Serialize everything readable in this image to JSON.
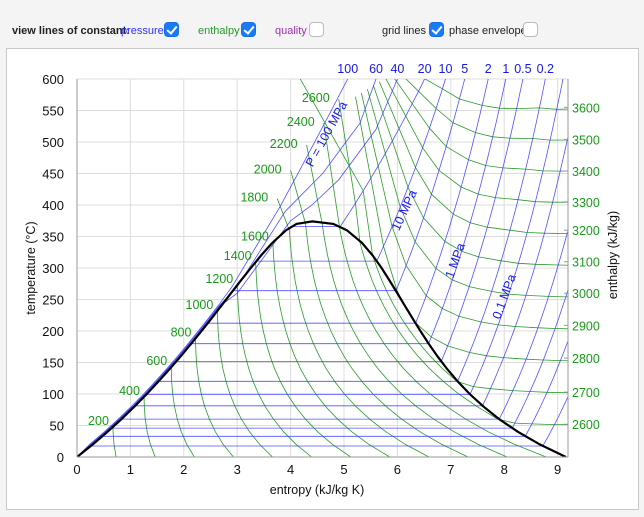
{
  "controls": {
    "lead": "view lines of constant:",
    "pressure": {
      "label": "pressure",
      "checked": true
    },
    "enthalpy": {
      "label": "enthalpy",
      "checked": true
    },
    "quality": {
      "label": "quality",
      "checked": false
    },
    "grid_lines": {
      "label": "grid lines",
      "checked": true
    },
    "phase_envelope": {
      "label": "phase envelope",
      "checked": false
    }
  },
  "colors": {
    "pressure": "#3333ff",
    "enthalpy": "#2a9a2a",
    "quality": "#9933aa",
    "dome": "#000000",
    "grid": "#dddddd"
  },
  "chart_data": {
    "type": "line",
    "title": "",
    "xlabel": "entropy (kJ/kg K)",
    "ylabel": "temperature (°C)",
    "y2label": "enthalpy (kJ/kg)",
    "xlim": [
      0,
      9.19
    ],
    "ylim": [
      0,
      600
    ],
    "grid": true,
    "x_ticks": [
      "0",
      "1",
      "2",
      "3",
      "4",
      "5",
      "6",
      "7",
      "8",
      "9"
    ],
    "y_ticks": [
      "0",
      "50",
      "100",
      "150",
      "200",
      "250",
      "300",
      "350",
      "400",
      "450",
      "500",
      "550",
      "600"
    ],
    "right_ticks": [
      {
        "label": "2600",
        "T": 52
      },
      {
        "label": "2700",
        "T": 103
      },
      {
        "label": "2800",
        "T": 157
      },
      {
        "label": "2900",
        "T": 209
      },
      {
        "label": "3000",
        "T": 260
      },
      {
        "label": "3100",
        "T": 310
      },
      {
        "label": "3200",
        "T": 360
      },
      {
        "label": "3300",
        "T": 405
      },
      {
        "label": "3400",
        "T": 454
      },
      {
        "label": "3500",
        "T": 504
      },
      {
        "label": "3600",
        "T": 555
      }
    ],
    "saturation": {
      "columns": [
        "T",
        "hf",
        "hg",
        "sf",
        "sg"
      ],
      "rows": [
        [
          0.01,
          0,
          2501,
          0,
          9.156
        ],
        [
          20,
          83.9,
          2538,
          0.296,
          8.666
        ],
        [
          40,
          167.5,
          2574,
          0.572,
          8.256
        ],
        [
          60,
          251.1,
          2609,
          0.831,
          7.909
        ],
        [
          80,
          334.9,
          2643,
          1.075,
          7.612
        ],
        [
          100,
          419.1,
          2676,
          1.307,
          7.354
        ],
        [
          120,
          503.7,
          2706,
          1.527,
          7.129
        ],
        [
          140,
          589.2,
          2734,
          1.739,
          6.929
        ],
        [
          160,
          675.5,
          2758,
          1.943,
          6.75
        ],
        [
          180,
          763.2,
          2778,
          2.14,
          6.585
        ],
        [
          200,
          852.4,
          2793,
          2.331,
          6.431
        ],
        [
          220,
          943.6,
          2802,
          2.518,
          6.284
        ],
        [
          240,
          1037.6,
          2804,
          2.702,
          6.141
        ],
        [
          260,
          1135,
          2797,
          2.884,
          5.999
        ],
        [
          280,
          1236.7,
          2780,
          3.067,
          5.854
        ],
        [
          300,
          1345,
          2749,
          3.254,
          5.704
        ],
        [
          320,
          1462.6,
          2700,
          3.448,
          5.536
        ],
        [
          340,
          1594.5,
          2622,
          3.659,
          5.336
        ],
        [
          360,
          1761.5,
          2481,
          3.915,
          5.053
        ],
        [
          370,
          1890,
          2334,
          4.11,
          4.8
        ],
        [
          373.95,
          2084,
          2084,
          4.407,
          4.407
        ]
      ]
    },
    "isobars": [
      {
        "p": 0.002,
        "Tsat": 17.5,
        "sf": 0.261,
        "sg": 8.723,
        "hg": 2533,
        "s600": 10.9
      },
      {
        "p": 0.005,
        "Tsat": 32.9,
        "sf": 0.476,
        "sg": 8.394,
        "hg": 2561,
        "s600": 10.48
      },
      {
        "p": 0.01,
        "Tsat": 45.8,
        "sf": 0.649,
        "sg": 8.149,
        "hg": 2584,
        "s600": 10.16
      },
      {
        "p": 0.02,
        "Tsat": 60.1,
        "sf": 0.832,
        "sg": 7.907,
        "hg": 2609,
        "s600": 9.84
      },
      {
        "p": 0.05,
        "Tsat": 81.3,
        "sf": 1.091,
        "sg": 7.593,
        "hg": 2645,
        "s600": 9.42
      },
      {
        "p": 0.1,
        "Tsat": 99.6,
        "sf": 1.303,
        "sg": 7.359,
        "hg": 2675,
        "s600": 9.1,
        "top_label": "",
        "label": "0.1 MPa"
      },
      {
        "p": 0.2,
        "Tsat": 120.2,
        "sf": 1.53,
        "sg": 7.127,
        "hg": 2706,
        "s600": 8.77,
        "top_label": "0.2"
      },
      {
        "p": 0.5,
        "Tsat": 151.8,
        "sf": 1.861,
        "sg": 6.821,
        "hg": 2748,
        "s600": 8.35,
        "top_label": "0.5"
      },
      {
        "p": 1,
        "Tsat": 179.9,
        "sf": 2.138,
        "sg": 6.585,
        "hg": 2777,
        "s600": 8.03,
        "top_label": "1",
        "label": "1 MPa"
      },
      {
        "p": 2,
        "Tsat": 212.4,
        "sf": 2.447,
        "sg": 6.34,
        "hg": 2799,
        "s600": 7.7,
        "top_label": "2"
      },
      {
        "p": 5,
        "Tsat": 263.9,
        "sf": 2.921,
        "sg": 5.973,
        "hg": 2794,
        "s600": 7.26,
        "top_label": "5"
      },
      {
        "p": 10,
        "Tsat": 311.0,
        "sf": 3.36,
        "sg": 5.614,
        "hg": 2725,
        "s600": 6.9,
        "top_label": "10",
        "label": "10 MPa"
      },
      {
        "p": 20,
        "Tsat": 365.8,
        "sf": 4.015,
        "sg": 4.928,
        "hg": 2412,
        "s600": 6.51,
        "top_label": "20"
      }
    ],
    "supercritical_isobars": [
      {
        "p": 40,
        "top_label": "40",
        "points": [
          [
            3.0,
            260
          ],
          [
            4.0,
            375
          ],
          [
            4.4,
            400
          ],
          [
            4.9,
            440
          ],
          [
            5.6,
            520
          ],
          [
            6.0,
            600
          ]
        ]
      },
      {
        "p": 60,
        "top_label": "60",
        "points": [
          [
            3.0,
            270
          ],
          [
            3.9,
            390
          ],
          [
            4.6,
            450
          ],
          [
            5.3,
            530
          ],
          [
            5.6,
            600
          ]
        ]
      },
      {
        "p": 100,
        "top_label": "100",
        "label": "P = 100 MPa",
        "points": [
          [
            2.9,
            270
          ],
          [
            3.8,
            397
          ],
          [
            4.2,
            460
          ],
          [
            4.7,
            540
          ],
          [
            5.07,
            600
          ]
        ]
      }
    ],
    "isenthalps": [
      {
        "h": 200,
        "label": "200"
      },
      {
        "h": 400,
        "label": "400"
      },
      {
        "h": 600,
        "label": "600"
      },
      {
        "h": 800,
        "label": "800"
      },
      {
        "h": 1000,
        "label": "1000"
      },
      {
        "h": 1200,
        "label": "1200"
      },
      {
        "h": 1400,
        "label": "1400"
      },
      {
        "h": 1600,
        "label": "1600"
      },
      {
        "h": 1800,
        "label": "1800",
        "start": [
          3.75,
          410
        ]
      },
      {
        "h": 2000,
        "label": "2000",
        "start": [
          4.0,
          455
        ]
      },
      {
        "h": 2200,
        "label": "2200",
        "start": [
          4.3,
          495
        ]
      },
      {
        "h": 2400,
        "label": "2400",
        "start": [
          4.62,
          530
        ]
      },
      {
        "h": 2600,
        "label": "2600",
        "start": [
          4.9,
          568
        ]
      },
      {
        "h": 2700
      },
      {
        "h": 2800
      },
      {
        "h": 2900
      },
      {
        "h": 3000
      },
      {
        "h": 3100
      },
      {
        "h": 3200
      },
      {
        "h": 3300
      },
      {
        "h": 3400
      },
      {
        "h": 3500
      },
      {
        "h": 3600
      }
    ]
  }
}
